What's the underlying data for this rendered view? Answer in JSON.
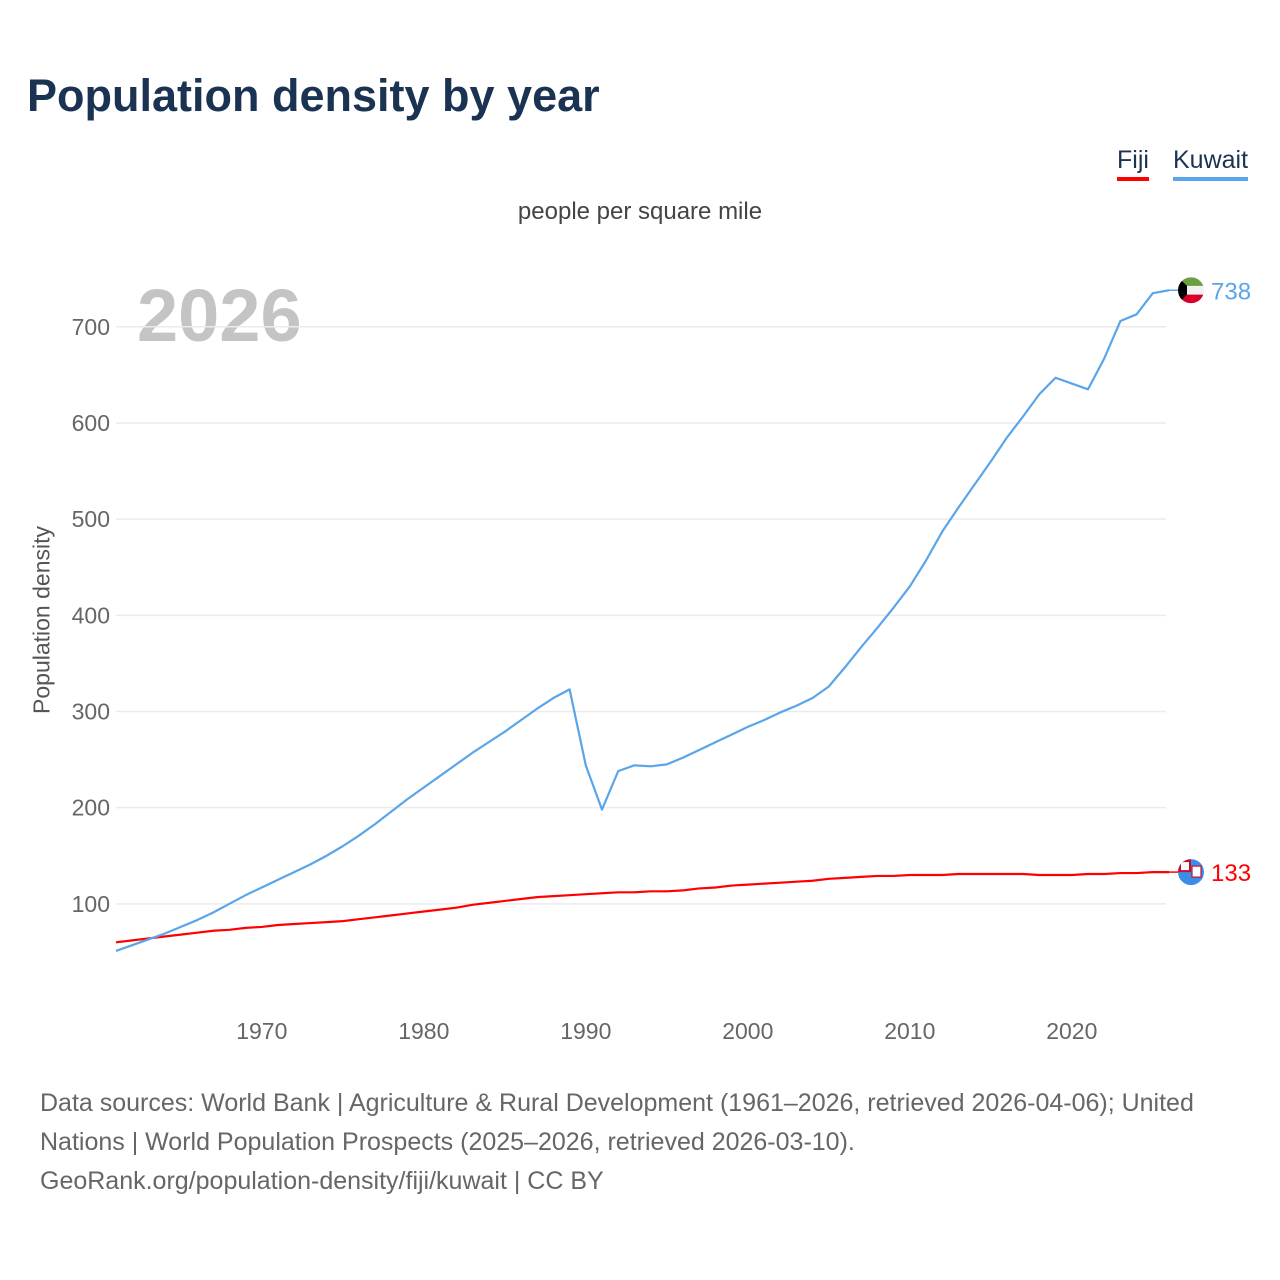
{
  "title": "Population density by year",
  "subtitle": "people per square mile",
  "year_watermark": "2026",
  "footer": {
    "line1": "Data sources: World Bank | Agriculture & Rural Development (1961–2026, retrieved 2026-04-06); United Nations | World Population Prospects (2025–2026, retrieved 2026-03-10).",
    "line2": "GeoRank.org/population-density/fiji/kuwait | CC BY"
  },
  "chart_data": {
    "type": "line",
    "title": "Population density by year",
    "xlabel": "",
    "ylabel": "Population density",
    "xlim": [
      1961,
      2026
    ],
    "ylim": [
      0,
      760
    ],
    "x_ticks": [
      1970,
      1980,
      1990,
      2000,
      2010,
      2020
    ],
    "y_ticks": [
      100,
      200,
      300,
      400,
      500,
      600,
      700
    ],
    "grid": true,
    "legend_position": "top-right",
    "series": [
      {
        "name": "Fiji",
        "color": "#ff0000",
        "end_label": "133",
        "flag": "fiji-flag",
        "values": [
          60,
          62,
          64,
          66,
          68,
          70,
          72,
          73,
          75,
          76,
          78,
          79,
          80,
          81,
          82,
          84,
          86,
          88,
          90,
          92,
          94,
          96,
          99,
          101,
          103,
          105,
          107,
          108,
          109,
          110,
          111,
          112,
          112,
          113,
          113,
          114,
          116,
          117,
          119,
          120,
          121,
          122,
          123,
          124,
          126,
          127,
          128,
          129,
          129,
          130,
          130,
          130,
          131,
          131,
          131,
          131,
          131,
          130,
          130,
          130,
          131,
          131,
          132,
          132,
          133,
          133
        ]
      },
      {
        "name": "Kuwait",
        "color": "#5aa5ea",
        "end_label": "738",
        "flag": "kuwait-flag",
        "values": [
          51,
          57,
          63,
          69,
          76,
          83,
          91,
          100,
          109,
          117,
          125,
          133,
          141,
          150,
          160,
          171,
          183,
          196,
          209,
          221,
          233,
          245,
          257,
          268,
          279,
          291,
          303,
          314,
          323,
          244,
          198,
          238,
          244,
          243,
          245,
          252,
          260,
          268,
          276,
          284,
          291,
          299,
          306,
          314,
          326,
          346,
          367,
          387,
          408,
          430,
          457,
          487,
          512,
          536,
          560,
          585,
          607,
          630,
          647,
          641,
          635,
          667,
          706,
          713,
          735,
          738
        ]
      }
    ]
  }
}
